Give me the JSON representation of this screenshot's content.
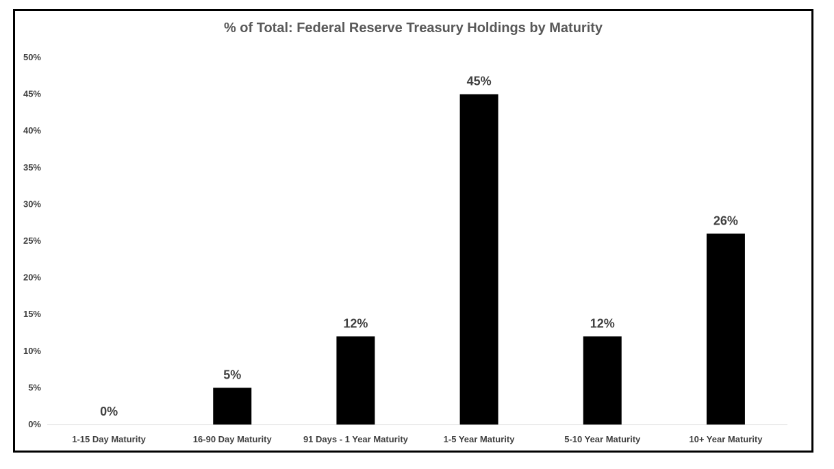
{
  "chart_data": {
    "type": "bar",
    "title": "% of Total: Federal Reserve Treasury Holdings by Maturity",
    "xlabel": "",
    "ylabel": "",
    "categories": [
      "1-15 Day Maturity",
      "16-90 Day Maturity",
      "91 Days - 1 Year Maturity",
      "1-5 Year Maturity",
      "5-10 Year Maturity",
      "10+ Year Maturity"
    ],
    "values": [
      0,
      5,
      12,
      45,
      12,
      26
    ],
    "data_labels": [
      "0%",
      "5%",
      "12%",
      "45%",
      "12%",
      "26%"
    ],
    "ylim": [
      0,
      50
    ],
    "y_ticks": [
      0,
      5,
      10,
      15,
      20,
      25,
      30,
      35,
      40,
      45,
      50
    ],
    "y_tick_labels": [
      "0%",
      "5%",
      "10%",
      "15%",
      "20%",
      "25%",
      "30%",
      "35%",
      "40%",
      "45%",
      "50%"
    ],
    "grid": false,
    "legend": "none",
    "bar_color": "#000000",
    "axis_color": "#d9d9d9",
    "label_color": "#404040"
  }
}
